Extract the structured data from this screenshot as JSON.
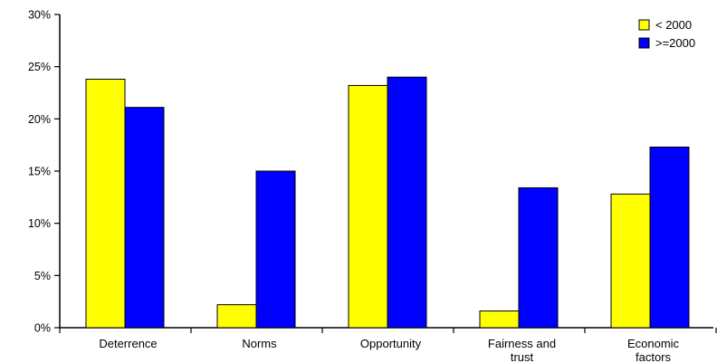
{
  "chart_data": {
    "type": "bar",
    "categories": [
      [
        "Deterrence"
      ],
      [
        "Norms"
      ],
      [
        "Opportunity"
      ],
      [
        "Fairness and",
        "trust"
      ],
      [
        "Economic",
        "factors"
      ]
    ],
    "series": [
      {
        "name": "< 2000",
        "color": "#FFFF00",
        "values": [
          23.8,
          2.2,
          23.2,
          1.6,
          12.8
        ]
      },
      {
        "name": ">=2000",
        "color": "#0000FF",
        "values": [
          21.1,
          15.0,
          24.0,
          13.4,
          17.3
        ]
      }
    ],
    "ylim": [
      0,
      30
    ],
    "yticks": [
      0,
      5,
      10,
      15,
      20,
      25,
      30
    ],
    "ytick_labels": [
      "0%",
      "5%",
      "10%",
      "15%",
      "20%",
      "25%",
      "30%"
    ],
    "title": "",
    "xlabel": "",
    "ylabel": "",
    "legend_position": "top-right",
    "grid": false
  }
}
